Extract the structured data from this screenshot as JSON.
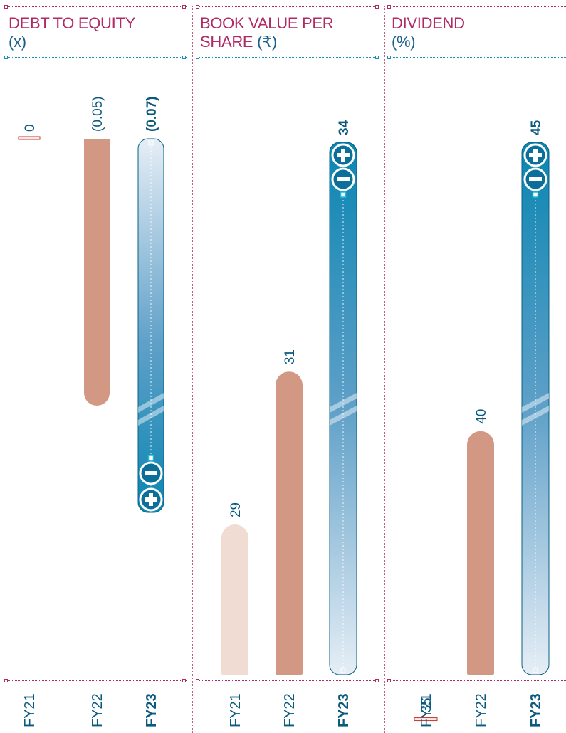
{
  "colors": {
    "title": "#b02a64",
    "unit": "#1a5f8a",
    "value": "#0b5a7e",
    "fy21": "#f0dcd3",
    "fy22": "#d29883",
    "highlight": "#0a84b0",
    "guide_pink": "#b02a64",
    "guide_blue": "#1b8fb8"
  },
  "chart_data": [
    {
      "type": "bar",
      "title": "DEBT TO EQUITY",
      "unit": "(x)",
      "categories": [
        "FY21",
        "FY22",
        "FY23"
      ],
      "values": [
        0,
        -0.05,
        -0.07
      ],
      "value_labels": [
        "0",
        "(0.05)",
        "(0.07)"
      ],
      "highlight_category": "FY23",
      "ylim": [
        -0.07,
        0
      ]
    },
    {
      "type": "bar",
      "title": "BOOK VALUE PER",
      "title_line2": "SHARE",
      "unit": "(₹)",
      "categories": [
        "FY21",
        "FY22",
        "FY23"
      ],
      "values": [
        29,
        31,
        34
      ],
      "value_labels": [
        "29",
        "31",
        "34"
      ],
      "highlight_category": "FY23"
    },
    {
      "type": "bar",
      "title": "DIVIDEND",
      "unit": "(%)",
      "categories": [
        "FY21",
        "FY22",
        "FY23"
      ],
      "values": [
        35,
        40,
        45
      ],
      "value_labels": [
        "35",
        "40",
        "45"
      ],
      "highlight_category": "FY23"
    }
  ]
}
